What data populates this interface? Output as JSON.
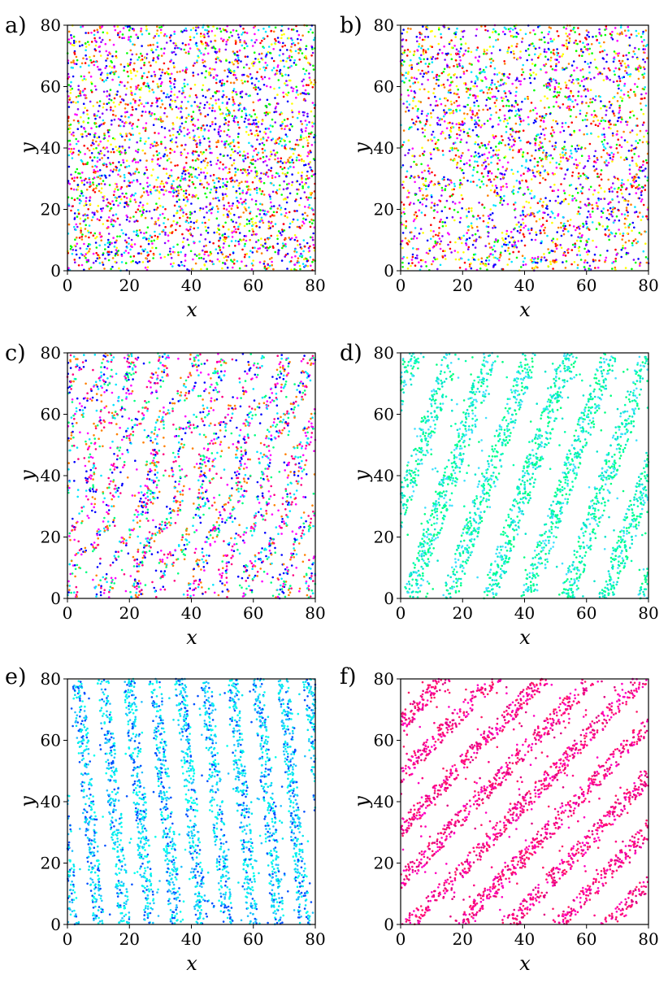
{
  "figure": {
    "panel_labels": [
      "a)",
      "b)",
      "c)",
      "d)",
      "e)",
      "f)"
    ]
  },
  "chart_data": [
    {
      "type": "scatter",
      "panel": "a)",
      "pattern": "disordered",
      "xlabel": "x",
      "ylabel": "y",
      "xlim": [
        0,
        80
      ],
      "ylim": [
        0,
        80
      ],
      "xticks": [
        "0",
        "20",
        "40",
        "60",
        "80"
      ],
      "yticks": [
        "0",
        "20",
        "40",
        "60",
        "80"
      ],
      "grid": false,
      "colors": [
        "#ff0000",
        "#ff00ff",
        "#0000ff",
        "#00e5ff",
        "#00ff00",
        "#ffff00",
        "#ff7f00",
        "#7f00ff"
      ],
      "point_count": 3200
    },
    {
      "type": "scatter",
      "panel": "b)",
      "pattern": "disordered-clustered",
      "xlabel": "x",
      "ylabel": "y",
      "xlim": [
        0,
        80
      ],
      "ylim": [
        0,
        80
      ],
      "xticks": [
        "0",
        "20",
        "40",
        "60",
        "80"
      ],
      "yticks": [
        "0",
        "20",
        "40",
        "60",
        "80"
      ],
      "grid": false,
      "colors": [
        "#ff0000",
        "#ff00ff",
        "#0000ff",
        "#00e5ff",
        "#00ff00",
        "#ffff00",
        "#ff7f00",
        "#7f00ff"
      ],
      "point_count": 2700
    },
    {
      "type": "scatter",
      "panel": "c)",
      "pattern": "wavy-stripes",
      "stripe_slope": 2.8,
      "stripe_period_x": 9.5,
      "stripe_width_x": 4.5,
      "xlabel": "x",
      "ylabel": "y",
      "xlim": [
        0,
        80
      ],
      "ylim": [
        0,
        80
      ],
      "xticks": [
        "0",
        "20",
        "40",
        "60",
        "80"
      ],
      "yticks": [
        "0",
        "20",
        "40",
        "60",
        "80"
      ],
      "grid": false,
      "colors": [
        "#00e5ff",
        "#00ff80",
        "#ff0080",
        "#0000ff",
        "#ff00ff",
        "#ff8000"
      ],
      "point_count": 2200
    },
    {
      "type": "scatter",
      "panel": "d)",
      "pattern": "stripes",
      "stripe_slope": 3.0,
      "stripe_period_x": 12.7,
      "stripe_width_x": 5.5,
      "xlabel": "x",
      "ylabel": "y",
      "xlim": [
        0,
        80
      ],
      "ylim": [
        0,
        80
      ],
      "xticks": [
        "0",
        "20",
        "40",
        "60",
        "80"
      ],
      "yticks": [
        "0",
        "20",
        "40",
        "60",
        "80"
      ],
      "grid": false,
      "colors": [
        "#00e5cc",
        "#00ff80",
        "#40e0ff",
        "#00ffaa"
      ],
      "point_count": 2600
    },
    {
      "type": "scatter",
      "panel": "e)",
      "pattern": "stripes",
      "stripe_slope": -11.4,
      "stripe_period_x": 8.3,
      "stripe_width_x": 3.8,
      "xlabel": "x",
      "ylabel": "y",
      "xlim": [
        0,
        80
      ],
      "ylim": [
        0,
        80
      ],
      "xticks": [
        "0",
        "20",
        "40",
        "60",
        "80"
      ],
      "yticks": [
        "0",
        "20",
        "40",
        "60",
        "80"
      ],
      "grid": false,
      "colors": [
        "#00e5ee",
        "#20c0ff",
        "#00ffee",
        "#0050ff"
      ],
      "point_count": 2900
    },
    {
      "type": "scatter",
      "panel": "f)",
      "pattern": "stripes",
      "stripe_slope": 1.07,
      "stripe_period_x": 16.0,
      "stripe_width_x": 6.0,
      "xlabel": "x",
      "ylabel": "y",
      "xlim": [
        0,
        80
      ],
      "ylim": [
        0,
        80
      ],
      "xticks": [
        "0",
        "20",
        "40",
        "60",
        "80"
      ],
      "yticks": [
        "0",
        "20",
        "40",
        "60",
        "80"
      ],
      "grid": false,
      "colors": [
        "#ff0080",
        "#ff00c0",
        "#e0007f",
        "#ff1a66"
      ],
      "point_count": 2600
    }
  ]
}
